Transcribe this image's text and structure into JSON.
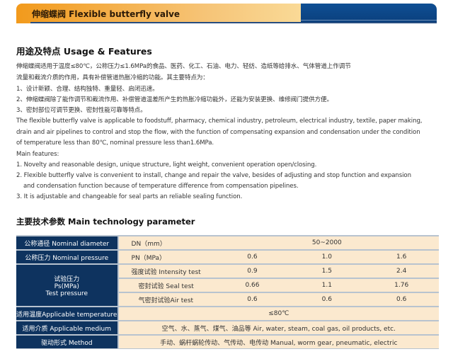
{
  "header": {
    "title": "伸缩蝶阀 Flexible butterfly valve"
  },
  "usage": {
    "title": "用途及特点 Usage & Features",
    "cn_lines": [
      "伸缩蝶阀适用于温度≤80℃，公称压力≤1.6MPa的食品、医药、化工、石油、电力、轻纺、造纸等给排水、气体管道上作调节",
      "流量和截流介质的作用，具有补偿管道热胀冷缩的功能。其主要特点为：",
      "1、设计新颖、合理、结构独特、重量轻、启闭迅速。",
      "2、伸缩蝶阀除了能作调节和截流作用、补偿管道温差所产生的热胀冷缩功能外，还能为安装更换、维修阀门提供方便。",
      "3、密封部位可调节更换、密封性能可靠等特点。"
    ],
    "en_lines": [
      "The flexible butterfly valve is applicable to foodstuff, pharmacy, chemical industry, petroleum, electrical industry, textile, paper making,",
      "drain and air pipelines to control and stop the flow, with the function of compensating expansion and condensation under the condition",
      "of temperature less than 80℃, nominal pressure less than1.6MPa.",
      "Main features:",
      "1. Novelty and reasonable design, unique structure, light weight, convenient operation open/closing.",
      "2. Flexible butterfly valve is convenient to install, change and repair the valve, besides of adjusting and stop function and expansion",
      "and condensation function because of temperature difference from compensation pipelines.",
      "3. It is adjustable and changeable for seal parts an reliable sealing function."
    ]
  },
  "params": {
    "title": "主要技术参数 Main technology parameter",
    "diameter": {
      "label": "公称通径 Nominal diameter",
      "sub": "DN（mm）",
      "value": "50~2000"
    },
    "pressure": {
      "label": "公称压力 Nominal pressure",
      "sub": "PN（MPa）",
      "values": [
        "0.6",
        "1.0",
        "1.6"
      ]
    },
    "test": {
      "label_cn": "试验压力",
      "label_unit": "Ps(MPa)",
      "label_en": "Test pressure",
      "rows": [
        {
          "sub": "强度试验 Intensity test",
          "values": [
            "0.9",
            "1.5",
            "2.4"
          ]
        },
        {
          "sub": "密封试验 Seal test",
          "values": [
            "0.66",
            "1.1",
            "1.76"
          ]
        },
        {
          "sub": "气密封试验Air test",
          "values": [
            "0.6",
            "0.6",
            "0.6"
          ]
        }
      ]
    },
    "temperature": {
      "label": "适用温度Applicable temperature",
      "value": "≤80℃"
    },
    "medium": {
      "label": "适用介质 Applicable medium",
      "value": "空气、水、蒸气、煤气、油品等 Air, water, steam, coal gas, oil products, etc."
    },
    "method": {
      "label": "驱动形式 Method",
      "value": "手动、蜗杆蜗轮传动、气传动、电传动 Manual, worm gear, pneumatic, electric"
    }
  }
}
